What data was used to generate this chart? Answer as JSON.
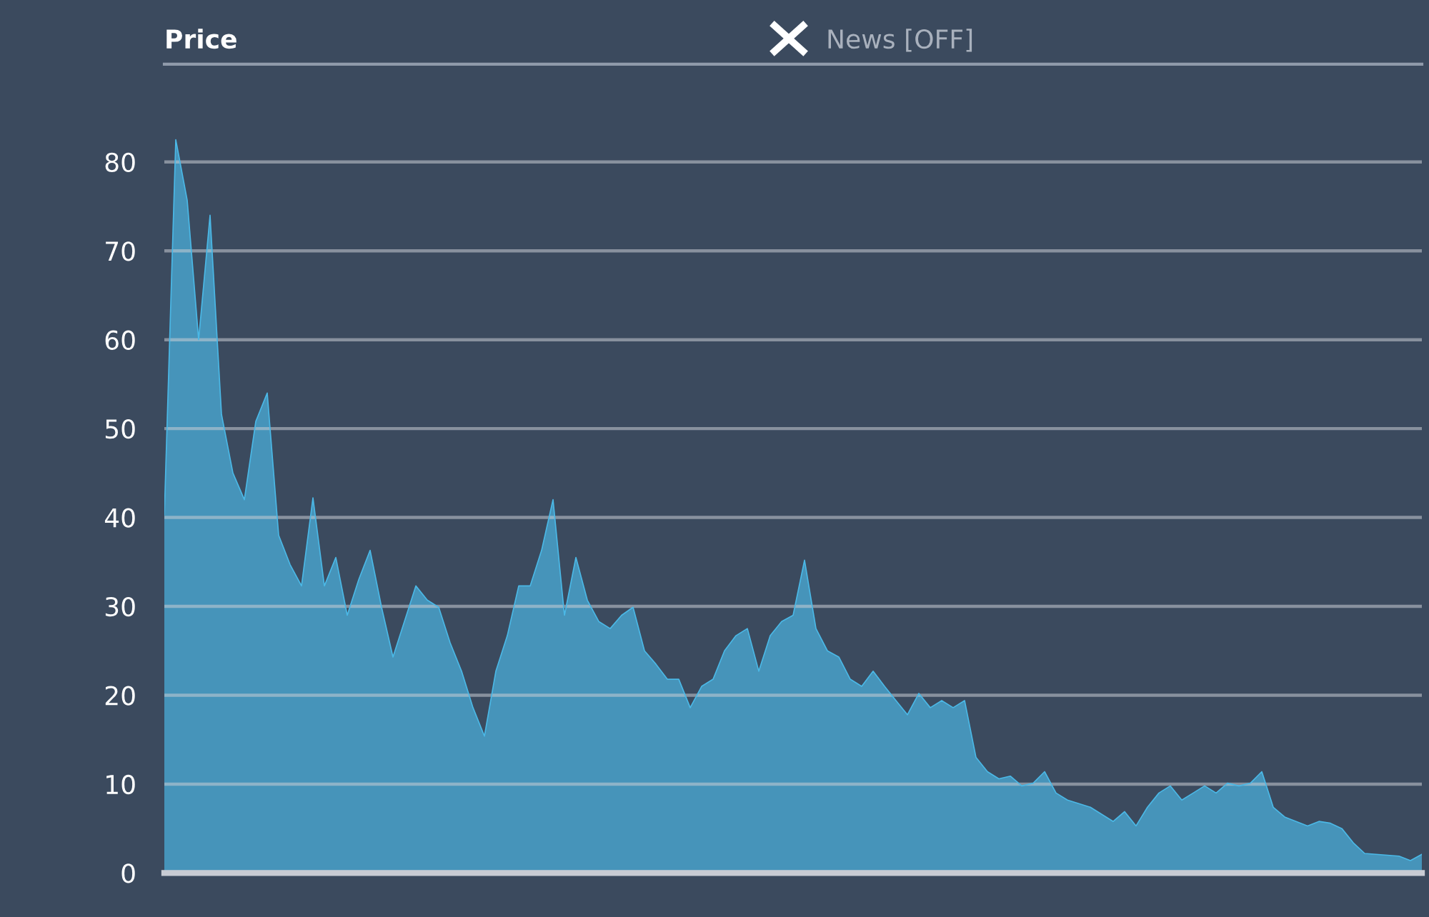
{
  "chart_data": {
    "type": "area",
    "ylabel": "Price",
    "annotations": [
      "News [OFF]"
    ],
    "categories": [
      null,
      null,
      null,
      null,
      null,
      null,
      null,
      null,
      null,
      null,
      null,
      null,
      null,
      null,
      null,
      null,
      null,
      null,
      null,
      null,
      null,
      null,
      null,
      null,
      null,
      null,
      null,
      null,
      null,
      null,
      null,
      null,
      null,
      null,
      null,
      null,
      null,
      null,
      null,
      null,
      null,
      null,
      null,
      null,
      null,
      null,
      null,
      null,
      null,
      null,
      null,
      null,
      null,
      null,
      null,
      null,
      null,
      null,
      null,
      null,
      null,
      null,
      null,
      null,
      null,
      null,
      null,
      null,
      null,
      null,
      null,
      null,
      null,
      null,
      null,
      null,
      null,
      null,
      null,
      null,
      null,
      null,
      null,
      null,
      null,
      null,
      null,
      null,
      null,
      null,
      null,
      null,
      null,
      null,
      null,
      null,
      null,
      null,
      null,
      null,
      null,
      null,
      null,
      null,
      null,
      null,
      null,
      null,
      null,
      null,
      null
    ],
    "series": [
      {
        "color": "#4bb8e6",
        "values": [
          40.3,
          82.5,
          75.7,
          60,
          74,
          51.6,
          45,
          42,
          50.8,
          54,
          38,
          34.7,
          32.3,
          42.2,
          32.3,
          35.5,
          29,
          33,
          36.3,
          29.9,
          24.3,
          28.3,
          32.3,
          30.7,
          29.9,
          25.9,
          22.7,
          18.6,
          15.4,
          22.7,
          26.7,
          32.3,
          32.3,
          36.3,
          42,
          29,
          35.5,
          30.7,
          28.3,
          27.5,
          29,
          29.9,
          25,
          23.5,
          21.8,
          21.8,
          18.6,
          21,
          21.8,
          25,
          26.7,
          27.5,
          22.7,
          26.7,
          28.3,
          29,
          35.2,
          27.5,
          25,
          24.3,
          21.8,
          21,
          22.7,
          21,
          19.4,
          17.8,
          20.2,
          18.6,
          19.4,
          18.6,
          19.4,
          13,
          11.4,
          10.6,
          10.9,
          9.8,
          10.1,
          11.4,
          9,
          8.2,
          7.8,
          7.4,
          6.6,
          5.8,
          6.9,
          5.3,
          7.4,
          9,
          9.8,
          8.2,
          9,
          9.8,
          9,
          10.1,
          9.8,
          10.1,
          11.4,
          7.4,
          6.3,
          5.8,
          5.3,
          5.8,
          5.6,
          5,
          3.4,
          2.2,
          2.1,
          2,
          1.9,
          1.4,
          2.1
        ]
      }
    ],
    "ylim": [
      0,
      91
    ],
    "yticks": [
      0,
      10,
      20,
      30,
      40,
      50,
      60,
      70,
      80
    ],
    "grid": "y",
    "legend": false,
    "line_style": "solid",
    "marker": "none"
  }
}
